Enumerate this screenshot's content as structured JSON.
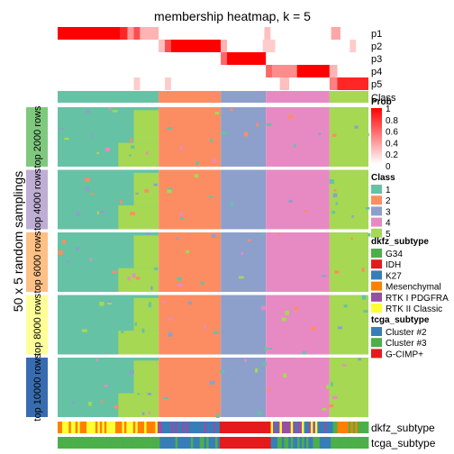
{
  "chart_data": {
    "type": "heatmap",
    "title": "membership heatmap, k = 5",
    "ylabel": "50 x 5 random samplings",
    "membership_rows": [
      "p1",
      "p2",
      "p3",
      "p4",
      "p5"
    ],
    "class_row_label": "Class",
    "sample_groups": [
      "top 2000 rows",
      "top 4000 rows",
      "top 6000 rows",
      "top 8000 rows",
      "top 10000 rows"
    ],
    "group_colors": [
      "#7fc97f",
      "#beaed4",
      "#fdc086",
      "#ffff99",
      "#386cb0"
    ],
    "class_segments": [
      {
        "class": "1",
        "fraction": 0.325
      },
      {
        "class": "2",
        "fraction": 0.2
      },
      {
        "class": "3",
        "fraction": 0.145
      },
      {
        "class": "4",
        "fraction": 0.205
      },
      {
        "class": "5",
        "fraction": 0.125
      }
    ],
    "membership_blocks": [
      {
        "row": "p1",
        "start": 0.0,
        "end": 0.2,
        "value": 1
      },
      {
        "row": "p1",
        "start": 0.2,
        "end": 0.225,
        "value": 0.85
      },
      {
        "row": "p1",
        "start": 0.225,
        "end": 0.245,
        "value": 0.4
      },
      {
        "row": "p1",
        "start": 0.245,
        "end": 0.265,
        "value": 0.7
      },
      {
        "row": "p1",
        "start": 0.265,
        "end": 0.325,
        "value": 0.3
      },
      {
        "row": "p1",
        "start": 0.665,
        "end": 0.685,
        "value": 0.25
      },
      {
        "row": "p1",
        "start": 0.88,
        "end": 0.91,
        "value": 0.35
      },
      {
        "row": "p2",
        "start": 0.325,
        "end": 0.345,
        "value": 0.25
      },
      {
        "row": "p2",
        "start": 0.345,
        "end": 0.365,
        "value": 0.7
      },
      {
        "row": "p2",
        "start": 0.365,
        "end": 0.525,
        "value": 1
      },
      {
        "row": "p2",
        "start": 0.525,
        "end": 0.545,
        "value": 0.3
      },
      {
        "row": "p2",
        "start": 0.66,
        "end": 0.7,
        "value": 0.2
      },
      {
        "row": "p2",
        "start": 0.94,
        "end": 0.96,
        "value": 0.2
      },
      {
        "row": "p3",
        "start": 0.525,
        "end": 0.545,
        "value": 0.6
      },
      {
        "row": "p3",
        "start": 0.545,
        "end": 0.67,
        "value": 1
      },
      {
        "row": "p4",
        "start": 0.67,
        "end": 0.69,
        "value": 0.6
      },
      {
        "row": "p4",
        "start": 0.69,
        "end": 0.77,
        "value": 0.45
      },
      {
        "row": "p4",
        "start": 0.77,
        "end": 0.875,
        "value": 1
      },
      {
        "row": "p4",
        "start": 0.875,
        "end": 0.9,
        "value": 0.3
      },
      {
        "row": "p5",
        "start": 0.245,
        "end": 0.265,
        "value": 0.2
      },
      {
        "row": "p5",
        "start": 0.345,
        "end": 0.365,
        "value": 0.2
      },
      {
        "row": "p5",
        "start": 0.715,
        "end": 0.745,
        "value": 0.25
      },
      {
        "row": "p5",
        "start": 0.875,
        "end": 0.9,
        "value": 0.5
      },
      {
        "row": "p5",
        "start": 0.9,
        "end": 1.0,
        "value": 0.85
      }
    ],
    "legends": {
      "prob": {
        "title": "Prob",
        "ticks": [
          "1",
          "0.8",
          "0.6",
          "0.4",
          "0.2",
          "0"
        ]
      },
      "class": {
        "title": "Class",
        "items": [
          {
            "label": "1",
            "color": "#66c2a5"
          },
          {
            "label": "2",
            "color": "#fc8d62"
          },
          {
            "label": "3",
            "color": "#8da0cb"
          },
          {
            "label": "4",
            "color": "#e78ac3"
          },
          {
            "label": "5",
            "color": "#a6d854"
          }
        ]
      },
      "dkfz_subtype": {
        "title": "dkfz_subtype",
        "items": [
          {
            "label": "G34",
            "color": "#4daf4a"
          },
          {
            "label": "IDH",
            "color": "#e41a1c"
          },
          {
            "label": "K27",
            "color": "#377eb8"
          },
          {
            "label": "Mesenchymal",
            "color": "#ff7f00"
          },
          {
            "label": "RTK I PDGFRA",
            "color": "#984ea3"
          },
          {
            "label": "RTK II Classic",
            "color": "#ffff33"
          }
        ]
      },
      "tcga_subtype": {
        "title": "tcga_subtype",
        "items": [
          {
            "label": "Cluster #2",
            "color": "#377eb8"
          },
          {
            "label": "Cluster #3",
            "color": "#4daf4a"
          },
          {
            "label": "G-CIMP+",
            "color": "#e41a1c"
          }
        ]
      }
    },
    "annotation_tracks": [
      "dkfz_subtype",
      "tcga_subtype"
    ],
    "grid": false
  }
}
